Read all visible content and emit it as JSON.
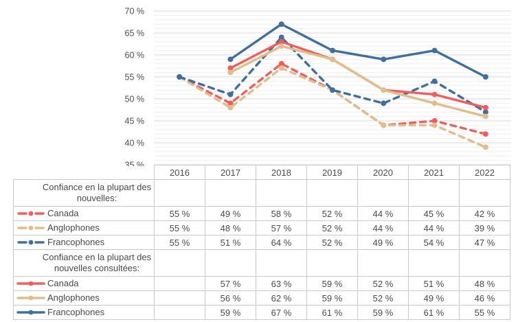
{
  "chart_data": {
    "type": "line",
    "title": "",
    "xlabel": "",
    "ylabel": "",
    "x_categories": [
      "2016",
      "2017",
      "2018",
      "2019",
      "2020",
      "2021",
      "2022"
    ],
    "ylim": [
      35,
      70
    ],
    "ytick_step": 5,
    "yminor_step": 1,
    "grid": true,
    "legend_position": "table-left-column",
    "value_suffix": " %",
    "yticks": [
      {
        "value": 70,
        "label": "70 %"
      },
      {
        "value": 65,
        "label": "65 %"
      },
      {
        "value": 60,
        "label": "60 %"
      },
      {
        "value": 55,
        "label": "55 %"
      },
      {
        "value": 50,
        "label": "50 %"
      },
      {
        "value": 45,
        "label": "45 %"
      },
      {
        "value": 40,
        "label": "40 %"
      },
      {
        "value": 35,
        "label": "35 %"
      }
    ],
    "groups": [
      {
        "label": "Confiance en la plupart des\nnouvelles:",
        "line_style": "dashed",
        "series": [
          {
            "name": "Canada",
            "color": "#f15d5d",
            "values": [
              55,
              49,
              58,
              52,
              44,
              45,
              42
            ]
          },
          {
            "name": "Anglophones",
            "color": "#e0bd8b",
            "values": [
              55,
              48,
              57,
              52,
              44,
              44,
              39
            ]
          },
          {
            "name": "Francophones",
            "color": "#3f6f9e",
            "values": [
              55,
              51,
              64,
              52,
              49,
              54,
              47
            ]
          }
        ]
      },
      {
        "label": "Confiance en la plupart des\nnouvelles consultées:",
        "line_style": "solid",
        "series": [
          {
            "name": "Canada",
            "color": "#f15d5d",
            "values": [
              null,
              57,
              63,
              59,
              52,
              51,
              48
            ]
          },
          {
            "name": "Anglophones",
            "color": "#e0bd8b",
            "values": [
              null,
              56,
              62,
              59,
              52,
              49,
              46
            ]
          },
          {
            "name": "Francophones",
            "color": "#3f6f9e",
            "values": [
              null,
              59,
              67,
              61,
              59,
              61,
              55
            ]
          }
        ]
      }
    ],
    "colors": {
      "grid_minor": "#ededed",
      "grid_major": "#d8d8d8",
      "table_border": "#c9c9c9",
      "text": "#4a4a4a"
    }
  }
}
